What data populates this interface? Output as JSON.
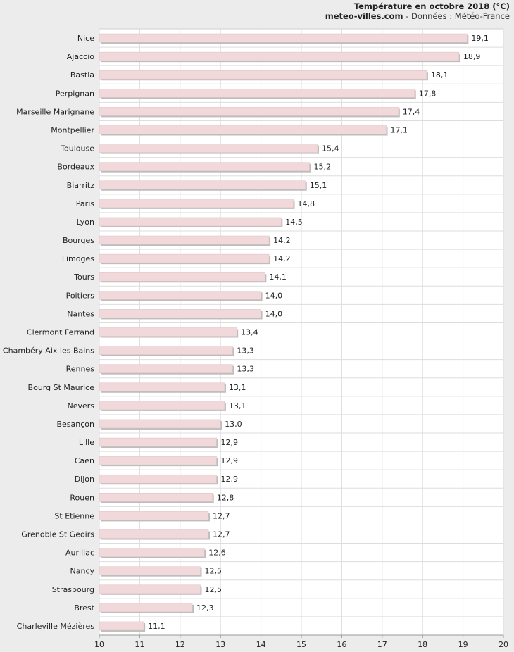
{
  "header": {
    "title": "Température en octobre 2018 (°C)",
    "site": "meteo-villes.com",
    "source": " - Données : Météo-France"
  },
  "colors": {
    "bar": "#f1d9db",
    "bar_shadow": "#bdbdbd",
    "plot_bg": "#ffffff",
    "grid": "#dddddd"
  },
  "chart_data": {
    "type": "bar",
    "orientation": "horizontal",
    "title": "Température en octobre 2018 (°C)",
    "xlim": [
      10,
      20
    ],
    "xticks": [
      10,
      11,
      12,
      13,
      14,
      15,
      16,
      17,
      18,
      19,
      20
    ],
    "grid": true,
    "categories": [
      "Nice",
      "Ajaccio",
      "Bastia",
      "Perpignan",
      "Marseille Marignane",
      "Montpellier",
      "Toulouse",
      "Bordeaux",
      "Biarritz",
      "Paris",
      "Lyon",
      "Bourges",
      "Limoges",
      "Tours",
      "Poitiers",
      "Nantes",
      "Clermont Ferrand",
      "Chambéry Aix les Bains",
      "Rennes",
      "Bourg St Maurice",
      "Nevers",
      "Besançon",
      "Lille",
      "Caen",
      "Dijon",
      "Rouen",
      "St Etienne",
      "Grenoble St Geoirs",
      "Aurillac",
      "Nancy",
      "Strasbourg",
      "Brest",
      "Charleville Mézières"
    ],
    "values": [
      19.1,
      18.9,
      18.1,
      17.8,
      17.4,
      17.1,
      15.4,
      15.2,
      15.1,
      14.8,
      14.5,
      14.2,
      14.2,
      14.1,
      14.0,
      14.0,
      13.4,
      13.3,
      13.3,
      13.1,
      13.1,
      13.0,
      12.9,
      12.9,
      12.9,
      12.8,
      12.7,
      12.7,
      12.6,
      12.5,
      12.5,
      12.3,
      11.1
    ],
    "value_labels": [
      "19,1",
      "18,9",
      "18,1",
      "17,8",
      "17,4",
      "17,1",
      "15,4",
      "15,2",
      "15,1",
      "14,8",
      "14,5",
      "14,2",
      "14,2",
      "14,1",
      "14,0",
      "14,0",
      "13,4",
      "13,3",
      "13,3",
      "13,1",
      "13,1",
      "13,0",
      "12,9",
      "12,9",
      "12,9",
      "12,8",
      "12,7",
      "12,7",
      "12,6",
      "12,5",
      "12,5",
      "12,3",
      "11,1"
    ]
  }
}
